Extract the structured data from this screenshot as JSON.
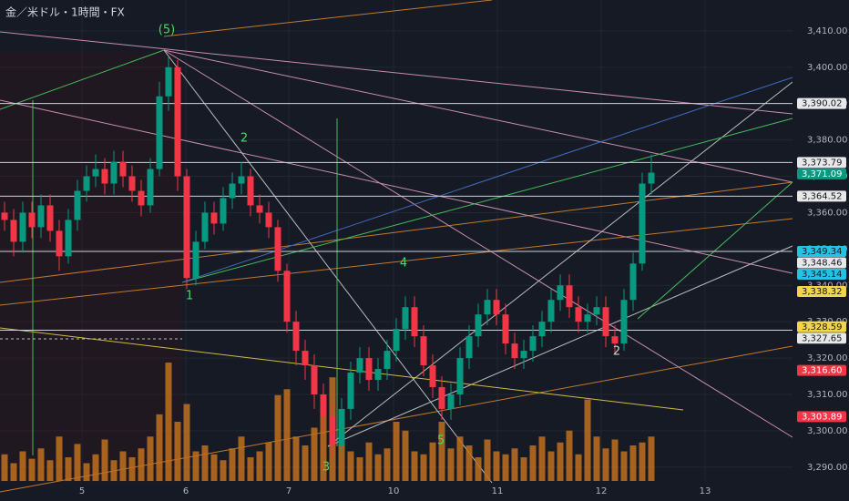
{
  "chart_data": {
    "type": "candlestick",
    "title": "金／米ドル・1時間・FX",
    "x": [
      0,
      1,
      2,
      3,
      4,
      5,
      6,
      7,
      8,
      9,
      10,
      11,
      12,
      13,
      14,
      15,
      16,
      17,
      18,
      19,
      20,
      21,
      22,
      23,
      24,
      25,
      26,
      27,
      28,
      29,
      30,
      31,
      32,
      33,
      34,
      35,
      36,
      37,
      38,
      39,
      40,
      41,
      42,
      43,
      44,
      45,
      46,
      47,
      48,
      49,
      50,
      51,
      52,
      53,
      54,
      55,
      56,
      57,
      58,
      59,
      60,
      61,
      62,
      63,
      64,
      65,
      66,
      67,
      68,
      69,
      70,
      71
    ],
    "open": [
      3360,
      3358,
      3352,
      3360,
      3356,
      3362,
      3355,
      3348,
      3358,
      3366,
      3370,
      3372,
      3368,
      3374,
      3370,
      3366,
      3362,
      3372,
      3392,
      3400,
      3370,
      3342,
      3352,
      3360,
      3357,
      3364,
      3368,
      3370,
      3362,
      3360,
      3356,
      3344,
      3330,
      3322,
      3318,
      3310,
      3304,
      3296,
      3306,
      3316,
      3320,
      3314,
      3317,
      3322,
      3328,
      3334,
      3326,
      3318,
      3312,
      3306,
      3310,
      3320,
      3326,
      3332,
      3336,
      3332,
      3324,
      3320,
      3322,
      3326,
      3330,
      3336,
      3340,
      3334,
      3330,
      3332,
      3334,
      3326,
      3324,
      3336,
      3346,
      3368
    ],
    "high": [
      3363,
      3361,
      3363,
      3363,
      3365,
      3365,
      3358,
      3361,
      3369,
      3373,
      3376,
      3375,
      3377,
      3377,
      3373,
      3369,
      3375,
      3396,
      3403,
      3402,
      3372,
      3355,
      3363,
      3363,
      3367,
      3371,
      3374,
      3372,
      3365,
      3363,
      3358,
      3346,
      3333,
      3325,
      3321,
      3313,
      3307,
      3309,
      3319,
      3323,
      3323,
      3320,
      3325,
      3331,
      3337,
      3337,
      3329,
      3321,
      3315,
      3313,
      3323,
      3329,
      3335,
      3339,
      3339,
      3335,
      3327,
      3325,
      3329,
      3333,
      3339,
      3343,
      3343,
      3337,
      3335,
      3337,
      3337,
      3329,
      3339,
      3349,
      3371,
      3376
    ],
    "low": [
      3355,
      3348,
      3349,
      3353,
      3353,
      3352,
      3344,
      3346,
      3355,
      3363,
      3367,
      3365,
      3365,
      3367,
      3363,
      3359,
      3360,
      3370,
      3388,
      3366,
      3339,
      3340,
      3350,
      3354,
      3355,
      3361,
      3365,
      3359,
      3357,
      3353,
      3341,
      3327,
      3318,
      3314,
      3306,
      3300,
      3293,
      3294,
      3303,
      3313,
      3311,
      3311,
      3314,
      3319,
      3325,
      3323,
      3315,
      3309,
      3303,
      3303,
      3307,
      3317,
      3323,
      3329,
      3329,
      3321,
      3317,
      3317,
      3319,
      3323,
      3327,
      3333,
      3331,
      3327,
      3327,
      3329,
      3323,
      3321,
      3322,
      3333,
      3344,
      3365
    ],
    "close": [
      3358,
      3352,
      3360,
      3356,
      3362,
      3355,
      3348,
      3358,
      3366,
      3370,
      3372,
      3368,
      3374,
      3370,
      3366,
      3362,
      3372,
      3392,
      3400,
      3370,
      3342,
      3352,
      3360,
      3357,
      3364,
      3368,
      3370,
      3362,
      3360,
      3356,
      3344,
      3330,
      3322,
      3318,
      3310,
      3304,
      3296,
      3306,
      3316,
      3320,
      3314,
      3317,
      3322,
      3328,
      3334,
      3326,
      3318,
      3312,
      3306,
      3310,
      3320,
      3326,
      3332,
      3336,
      3332,
      3324,
      3320,
      3322,
      3326,
      3330,
      3336,
      3340,
      3334,
      3330,
      3332,
      3334,
      3326,
      3324,
      3336,
      3346,
      3368,
      3371
    ],
    "volume": [
      18,
      12,
      20,
      15,
      22,
      14,
      30,
      16,
      25,
      12,
      18,
      28,
      14,
      20,
      16,
      22,
      30,
      45,
      80,
      40,
      52,
      20,
      24,
      18,
      14,
      22,
      30,
      16,
      20,
      26,
      58,
      62,
      30,
      24,
      36,
      44,
      70,
      32,
      20,
      16,
      26,
      18,
      22,
      40,
      34,
      20,
      18,
      26,
      40,
      22,
      30,
      24,
      16,
      28,
      20,
      18,
      22,
      16,
      24,
      30,
      20,
      26,
      34,
      18,
      55,
      30,
      22,
      28,
      20,
      24,
      26,
      30
    ],
    "up_color": "#089981",
    "down_color": "#f23645",
    "volume_color": "#c0701f",
    "xlim": [
      -0.5,
      86.5
    ],
    "xticks": [
      {
        "value": 8.5,
        "label": "5"
      },
      {
        "value": 19.9,
        "label": "6"
      },
      {
        "value": 31.2,
        "label": "7"
      },
      {
        "value": 42.7,
        "label": "10"
      },
      {
        "value": 54.1,
        "label": "11"
      },
      {
        "value": 65.5,
        "label": "12"
      },
      {
        "value": 76.9,
        "label": "13"
      }
    ],
    "ylim": [
      3291.7,
      3418.5
    ],
    "yticks": [
      {
        "value": 3290,
        "label": "3,290.00"
      },
      {
        "value": 3300,
        "label": "3,300.00"
      },
      {
        "value": 3310,
        "label": "3,310.00"
      },
      {
        "value": 3320,
        "label": "3,320.00"
      },
      {
        "value": 3330,
        "label": "3,330.00"
      },
      {
        "value": 3340,
        "label": "3,340.00"
      },
      {
        "value": 3350,
        "label": "3,350.00"
      },
      {
        "value": 3360,
        "label": "3,360.00"
      },
      {
        "value": 3370,
        "label": "3,370.00"
      },
      {
        "value": 3380,
        "label": "3,380.00"
      },
      {
        "value": 3390,
        "label": "3,390.00"
      },
      {
        "value": 3400,
        "label": "3,400.00"
      },
      {
        "value": 3410,
        "label": "3,410.00"
      }
    ],
    "grid": true,
    "price_tags": [
      {
        "value": 3390.02,
        "label": "3,390.02",
        "color": "#e8e8e8",
        "line": true
      },
      {
        "value": 3373.79,
        "label": "3,373.79",
        "color": "#e8e8e8",
        "line": true
      },
      {
        "value": 3371.09,
        "label": "3,371.09",
        "color": "#089981",
        "line": false
      },
      {
        "value": 3364.52,
        "label": "3,364.52",
        "color": "#e8e8e8",
        "line": true
      },
      {
        "value": 3349.34,
        "label": "3,349.34",
        "color": "#22c3e6",
        "line": true
      },
      {
        "value": 3348.46,
        "label": "3,348.46",
        "color": "#e8e8e8",
        "line": false
      },
      {
        "value": 3345.14,
        "label": "3,345.14",
        "color": "#22c3e6",
        "line": false
      },
      {
        "value": 3338.32,
        "label": "3,338.32",
        "color": "#f5d547",
        "line": false
      },
      {
        "value": 3328.59,
        "label": "3,328.59",
        "color": "#f5d547",
        "line": false
      },
      {
        "value": 3327.65,
        "label": "3,327.65",
        "color": "#e8e8e8",
        "line": true
      },
      {
        "value": 3316.6,
        "label": "3,316.60",
        "color": "#f23645",
        "line": false
      },
      {
        "value": 3303.89,
        "label": "3,303.89",
        "color": "#f23645",
        "line": false
      }
    ],
    "annotations": [
      {
        "text": "(5)",
        "color": "#4cd964"
      },
      {
        "text": "2",
        "color": "#4cd964"
      },
      {
        "text": "1",
        "color": "#4cd964"
      },
      {
        "text": "4",
        "color": "#4cd964"
      },
      {
        "text": "3",
        "color": "#4cd964"
      },
      {
        "text": "5",
        "color": "#4cd964"
      },
      {
        "text": "2",
        "color": "#d0d0d0"
      }
    ]
  }
}
